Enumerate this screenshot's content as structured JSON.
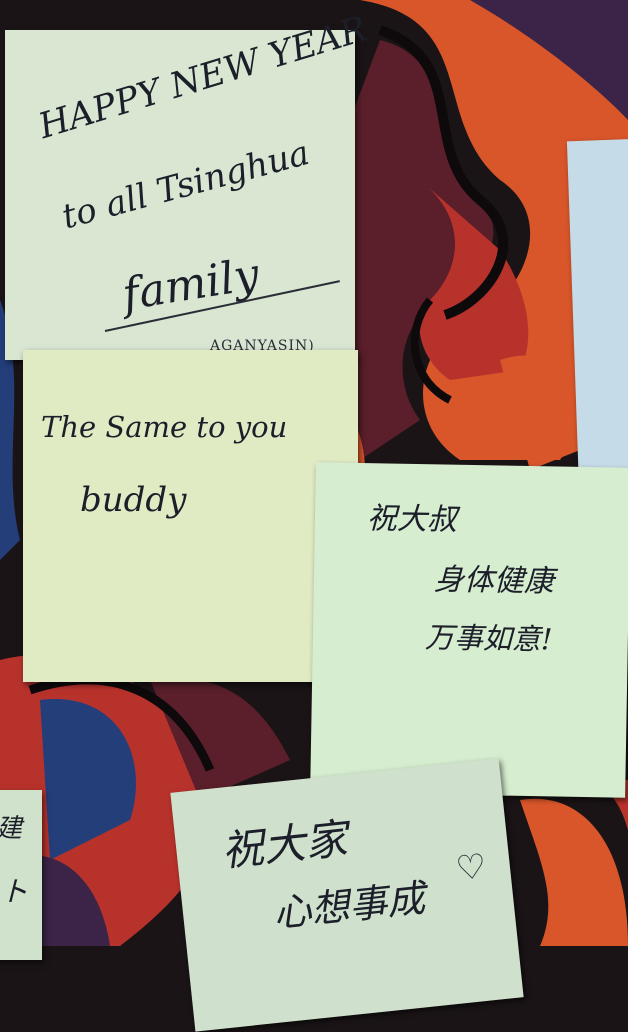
{
  "background": {
    "colors": {
      "dark": "#1a1416",
      "orange": "#d8562a",
      "red": "#b8322c",
      "maroon": "#5a1f2a",
      "purple": "#3b2447",
      "blue": "#243e7a"
    }
  },
  "notes": {
    "note1": {
      "lines": [
        "HAPPY NEW YEAR",
        "to all Tsinghua",
        "family"
      ],
      "signature": "AGANYASIN)",
      "color": "#d8e6d2"
    },
    "note2": {
      "lines": [
        "The Same to you",
        "buddy"
      ],
      "color": "#e0ebc4"
    },
    "note3": {
      "lines": [
        "祝大叔",
        "身体健康",
        "万事如意!"
      ],
      "color": "#d6edcf"
    },
    "note4": {
      "lines": [
        "祝大家",
        "心想事成"
      ],
      "heart": "♡",
      "color": "#cfe0cc"
    },
    "note5": {
      "lines": [
        "建",
        "ト"
      ],
      "color": "#d0e2cc"
    },
    "note6": {
      "color": "#c6dbe8"
    }
  }
}
